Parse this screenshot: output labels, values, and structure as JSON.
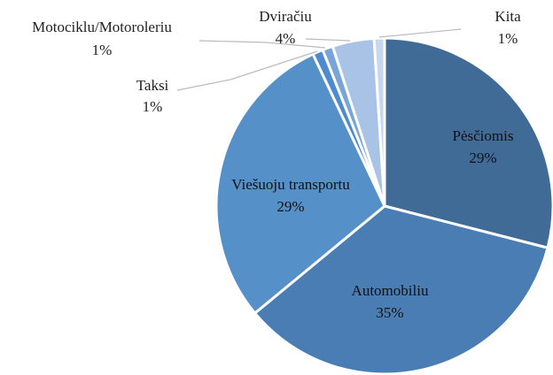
{
  "chart_data": {
    "type": "pie",
    "categories": [
      "Pėsčiomis",
      "Automobiliu",
      "Viešuoju transportu",
      "Taksi",
      "Motociklu/Motoroleriu",
      "Dviračiu",
      "Kita"
    ],
    "values": [
      29,
      35,
      29,
      1,
      1,
      4,
      1
    ],
    "value_labels": [
      "29%",
      "35%",
      "29%",
      "1%",
      "1%",
      "4%",
      "1%"
    ],
    "colors": [
      "#416b97",
      "#4a7db3",
      "#5590c9",
      "#4d8ad0",
      "#78a5d8",
      "#a8c3e6",
      "#c6d7ee"
    ]
  }
}
